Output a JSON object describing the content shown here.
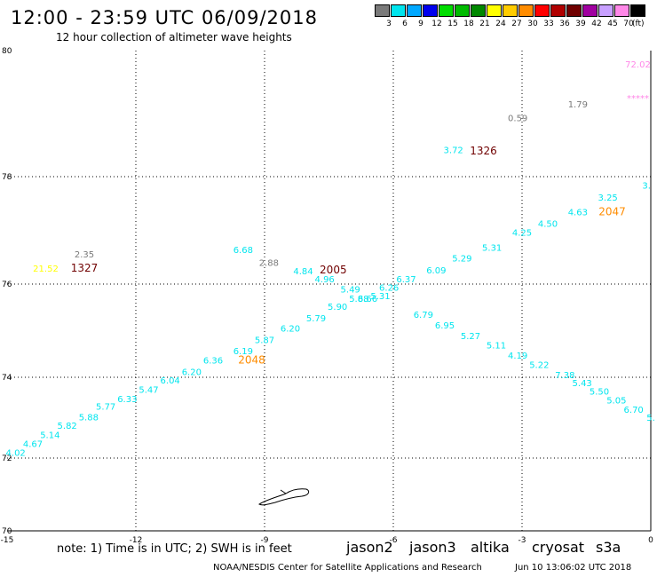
{
  "header": {
    "title": "12:00 - 23:59 UTC 06/09/2018",
    "subtitle": "12 hour collection of altimeter wave heights"
  },
  "legend": {
    "unit": "(ft)",
    "items": [
      {
        "label": "3",
        "color": "#7a7a7a"
      },
      {
        "label": "6",
        "color": "#00e5ee"
      },
      {
        "label": "9",
        "color": "#00a8ff"
      },
      {
        "label": "12",
        "color": "#0000ee"
      },
      {
        "label": "15",
        "color": "#00dd00"
      },
      {
        "label": "18",
        "color": "#00bb00"
      },
      {
        "label": "21",
        "color": "#008800"
      },
      {
        "label": "24",
        "color": "#ffff00"
      },
      {
        "label": "27",
        "color": "#ffcc00"
      },
      {
        "label": "30",
        "color": "#ff8c00"
      },
      {
        "label": "33",
        "color": "#ff0000"
      },
      {
        "label": "36",
        "color": "#b00000"
      },
      {
        "label": "39",
        "color": "#700000"
      },
      {
        "label": "42",
        "color": "#a000a0"
      },
      {
        "label": "45",
        "color": "#c8a0ff"
      },
      {
        "label": "70",
        "color": "#ff88e8"
      },
      {
        "label": "",
        "color": "#000000"
      }
    ]
  },
  "axes": {
    "x_ticks": [
      {
        "lon": -15,
        "label": "-15"
      },
      {
        "lon": -12,
        "label": "-12"
      },
      {
        "lon": -9,
        "label": "-9"
      },
      {
        "lon": -6,
        "label": "-6"
      },
      {
        "lon": -3,
        "label": "-3"
      },
      {
        "lon": 0,
        "label": "0"
      }
    ],
    "y_ticks": [
      {
        "lat": 80,
        "label": "80"
      },
      {
        "lat": 78,
        "label": "78"
      },
      {
        "lat": 76,
        "label": "76"
      },
      {
        "lat": 74,
        "label": "74"
      },
      {
        "lat": 72,
        "label": "72"
      },
      {
        "lat": 70,
        "label": "70"
      }
    ]
  },
  "chart_data": {
    "type": "scatter",
    "title": "12:00 - 23:59 UTC 06/09/2018",
    "subtitle": "12 hour collection of altimeter wave heights",
    "xlabel": "",
    "ylabel": "",
    "xlim": [
      -15,
      0
    ],
    "ylim": [
      70,
      80
    ],
    "grid": true,
    "legend_placement": "top-right colorbar",
    "points": [
      {
        "lon": -14.8,
        "lat": 72.05,
        "text": "4.02",
        "color": "#00e5ee"
      },
      {
        "lon": -14.4,
        "lat": 72.27,
        "text": "4.67",
        "color": "#00e5ee"
      },
      {
        "lon": -14.0,
        "lat": 72.5,
        "text": "5.14",
        "color": "#00e5ee"
      },
      {
        "lon": -13.6,
        "lat": 72.72,
        "text": "5.82",
        "color": "#00e5ee"
      },
      {
        "lon": -13.1,
        "lat": 72.93,
        "text": "5.88",
        "color": "#00e5ee"
      },
      {
        "lon": -12.7,
        "lat": 73.2,
        "text": "5.77",
        "color": "#00e5ee"
      },
      {
        "lon": -12.2,
        "lat": 73.38,
        "text": "6.33",
        "color": "#00e5ee"
      },
      {
        "lon": -11.7,
        "lat": 73.62,
        "text": "5.47",
        "color": "#00e5ee"
      },
      {
        "lon": -11.2,
        "lat": 73.85,
        "text": "6.04",
        "color": "#00e5ee"
      },
      {
        "lon": -10.7,
        "lat": 74.05,
        "text": "6.20",
        "color": "#00e5ee"
      },
      {
        "lon": -10.2,
        "lat": 74.3,
        "text": "6.36",
        "color": "#00e5ee"
      },
      {
        "lon": -9.5,
        "lat": 74.5,
        "text": "6.19",
        "color": "#00e5ee"
      },
      {
        "lon": -9.0,
        "lat": 74.73,
        "text": "5.87",
        "color": "#00e5ee"
      },
      {
        "lon": -8.4,
        "lat": 74.98,
        "text": "6.20",
        "color": "#00e5ee"
      },
      {
        "lon": -7.8,
        "lat": 75.2,
        "text": "5.79",
        "color": "#00e5ee"
      },
      {
        "lon": -7.3,
        "lat": 75.45,
        "text": "5.90",
        "color": "#00e5ee"
      },
      {
        "lon": -6.8,
        "lat": 75.62,
        "text": "5.88",
        "color": "#00e5ee"
      },
      {
        "lon": -6.6,
        "lat": 75.62,
        "text": "6.66",
        "color": "#00e5ee"
      },
      {
        "lon": -6.1,
        "lat": 75.86,
        "text": "6.26",
        "color": "#00e5ee"
      },
      {
        "lon": -6.3,
        "lat": 75.68,
        "text": "5.31",
        "color": "#00e5ee"
      },
      {
        "lon": -7.0,
        "lat": 75.82,
        "text": "5.49",
        "color": "#00e5ee"
      },
      {
        "lon": -7.6,
        "lat": 76.03,
        "text": "4.96",
        "color": "#00e5ee"
      },
      {
        "lon": -8.1,
        "lat": 76.18,
        "text": "4.84",
        "color": "#00e5ee"
      },
      {
        "lon": -9.5,
        "lat": 76.58,
        "text": "6.68",
        "color": "#00e5ee"
      },
      {
        "lon": -5.7,
        "lat": 76.03,
        "text": "6.37",
        "color": "#00e5ee"
      },
      {
        "lon": -5.0,
        "lat": 76.2,
        "text": "6.09",
        "color": "#00e5ee"
      },
      {
        "lon": -4.4,
        "lat": 76.42,
        "text": "5.29",
        "color": "#00e5ee"
      },
      {
        "lon": -3.7,
        "lat": 76.62,
        "text": "5.31",
        "color": "#00e5ee"
      },
      {
        "lon": -3.0,
        "lat": 76.9,
        "text": "4.25",
        "color": "#00e5ee"
      },
      {
        "lon": -2.4,
        "lat": 77.07,
        "text": "4.50",
        "color": "#00e5ee"
      },
      {
        "lon": -1.7,
        "lat": 77.28,
        "text": "4.63",
        "color": "#00e5ee"
      },
      {
        "lon": -1.0,
        "lat": 77.55,
        "text": "3.25",
        "color": "#00e5ee"
      },
      {
        "lon": -0.1,
        "lat": 77.78,
        "text": "3.",
        "color": "#00e5ee"
      },
      {
        "lon": -5.3,
        "lat": 75.28,
        "text": "6.79",
        "color": "#00e5ee"
      },
      {
        "lon": -4.8,
        "lat": 75.05,
        "text": "6.95",
        "color": "#00e5ee"
      },
      {
        "lon": -4.2,
        "lat": 74.82,
        "text": "5.27",
        "color": "#00e5ee"
      },
      {
        "lon": -3.6,
        "lat": 74.62,
        "text": "5.11",
        "color": "#00e5ee"
      },
      {
        "lon": -3.1,
        "lat": 74.4,
        "text": "4.19",
        "color": "#00e5ee"
      },
      {
        "lon": -2.6,
        "lat": 74.2,
        "text": "5.22",
        "color": "#00e5ee"
      },
      {
        "lon": -2.0,
        "lat": 73.98,
        "text": "7.38",
        "color": "#00e5ee"
      },
      {
        "lon": -1.6,
        "lat": 73.78,
        "text": "5.43",
        "color": "#00e5ee"
      },
      {
        "lon": -1.2,
        "lat": 73.57,
        "text": "5.50",
        "color": "#00e5ee"
      },
      {
        "lon": -0.8,
        "lat": 73.35,
        "text": "5.05",
        "color": "#00e5ee"
      },
      {
        "lon": -0.4,
        "lat": 73.12,
        "text": "6.70",
        "color": "#00e5ee"
      },
      {
        "lon": 0.0,
        "lat": 72.92,
        "text": "5.",
        "color": "#00e5ee"
      },
      {
        "lon": -4.6,
        "lat": 78.37,
        "text": "3.72",
        "color": "#00e5ee"
      },
      {
        "lon": -3.1,
        "lat": 78.88,
        "text": "0.59",
        "color": "#7a7a7a"
      },
      {
        "lon": -1.7,
        "lat": 79.1,
        "text": "1.79",
        "color": "#7a7a7a"
      },
      {
        "lon": -13.2,
        "lat": 76.5,
        "text": "2.35",
        "color": "#7a7a7a"
      },
      {
        "lon": -8.9,
        "lat": 76.34,
        "text": "2.88",
        "color": "#7a7a7a"
      },
      {
        "lon": -14.1,
        "lat": 76.23,
        "text": "21.52",
        "color": "#ffff00"
      },
      {
        "lon": -0.3,
        "lat": 79.73,
        "text": "72.02",
        "color": "#ff88e8"
      },
      {
        "lon": -0.3,
        "lat": 79.2,
        "text": "*****",
        "color": "#ff88e8"
      }
    ],
    "time_labels": [
      {
        "lon": -13.2,
        "lat": 76.23,
        "text": "1327",
        "color": "#700000"
      },
      {
        "lon": -3.9,
        "lat": 78.35,
        "text": "1326",
        "color": "#700000"
      },
      {
        "lon": -7.4,
        "lat": 76.2,
        "text": "2005",
        "color": "#700000"
      },
      {
        "lon": -9.3,
        "lat": 74.3,
        "text": "2048",
        "color": "#ff8c00"
      },
      {
        "lon": -0.9,
        "lat": 77.28,
        "text": "2047",
        "color": "#ff8c00"
      }
    ]
  },
  "footer": {
    "note": "note: 1) Time is in UTC; 2) SWH is in feet",
    "satellites": [
      {
        "name": "jason2",
        "color": "#0000ee"
      },
      {
        "name": "jason3",
        "color": "#00aa00"
      },
      {
        "name": "altika",
        "color": "#ff8c00"
      },
      {
        "name": "cryosat",
        "color": "#ee0000"
      },
      {
        "name": "s3a",
        "color": "#b00000"
      }
    ],
    "credit": "NOAA/NESDIS Center for Satellite Applications and Research",
    "timestamp": "Jun 10 13:06:02 UTC 2018"
  }
}
